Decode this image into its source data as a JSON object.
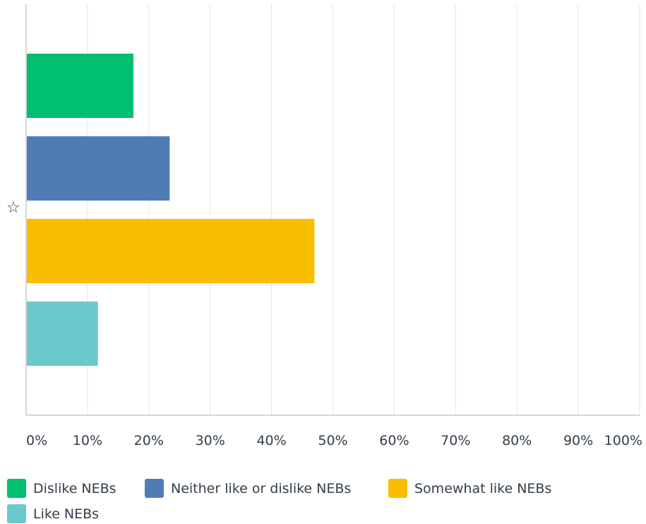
{
  "chart_data": {
    "type": "bar",
    "orientation": "horizontal",
    "categories": [
      ""
    ],
    "series": [
      {
        "name": "Dislike NEBs",
        "values": [
          17.5
        ],
        "color": "#00bf6f"
      },
      {
        "name": "Neither like or dislike NEBs",
        "values": [
          23.4
        ],
        "color": "#507cb6"
      },
      {
        "name": "Somewhat like NEBs",
        "values": [
          47.0
        ],
        "color": "#f9be00"
      },
      {
        "name": "Like NEBs",
        "values": [
          11.7
        ],
        "color": "#6bc8cd"
      }
    ],
    "xlim": [
      0,
      100
    ],
    "x_ticks": [
      "0%",
      "10%",
      "20%",
      "30%",
      "40%",
      "50%",
      "60%",
      "70%",
      "80%",
      "90%",
      "100%"
    ],
    "grid": true,
    "legend_position": "bottom",
    "category_marker": "☆"
  }
}
